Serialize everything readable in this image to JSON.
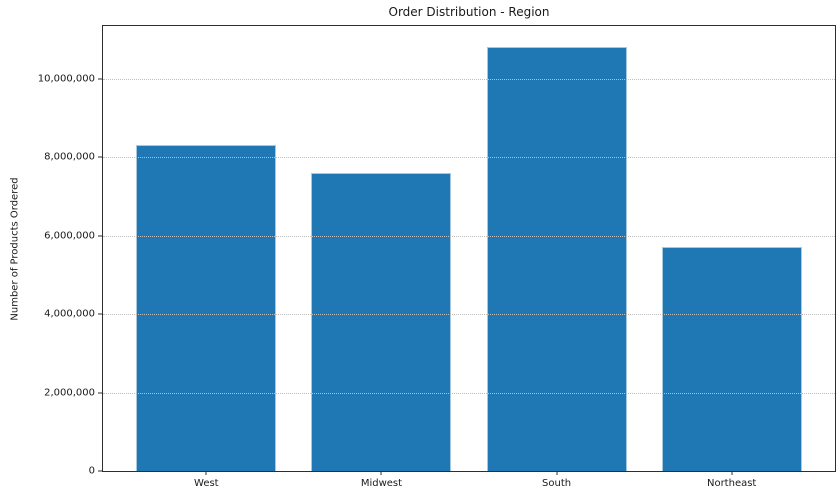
{
  "chart_data": {
    "type": "bar",
    "title": "Order Distribution - Region",
    "xlabel": "",
    "ylabel": "Number of Products Ordered",
    "categories": [
      "West",
      "Midwest",
      "South",
      "Northeast"
    ],
    "values": [
      8300000,
      7600000,
      10800000,
      5700000
    ],
    "yticks": [
      0,
      2000000,
      4000000,
      6000000,
      8000000,
      10000000
    ],
    "ytick_labels": [
      "0",
      "2,000,000",
      "4,000,000",
      "6,000,000",
      "8,000,000",
      "10,000,000"
    ],
    "ylim": [
      0,
      11340000
    ],
    "xlim": [
      -0.59,
      3.59
    ],
    "bar_width": 0.8,
    "bar_color": "#1f77b4",
    "bar_edge_color": "#a5cae0",
    "grid": "horizontal-dotted",
    "grid_color": "#bebebe",
    "spine_color": "#2e2e2e",
    "legend": null
  }
}
